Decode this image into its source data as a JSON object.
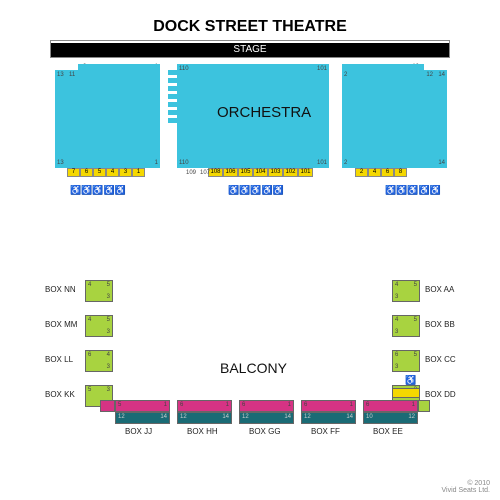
{
  "title": "DOCK STREET THEATRE",
  "stage_label": "STAGE",
  "orchestra_label": "ORCHESTRA",
  "balcony_label": "BALCONY",
  "colors": {
    "orchestra": "#3cc3de",
    "premium": "#f5d800",
    "box_green": "#a8d340",
    "pink": "#d63384",
    "teal": "#1a6b75",
    "stage_black": "#000000"
  },
  "orch_left": {
    "tl": "13",
    "tl2": "11",
    "tr": "9",
    "tr2": "1",
    "bl": "13",
    "br": "1"
  },
  "orch_center": {
    "tl": "110",
    "tr": "101",
    "bl": "110",
    "br": "101"
  },
  "orch_right": {
    "tl": "2",
    "tr": "10",
    "tr2": "12",
    "tr3": "14",
    "bl": "2",
    "br": "14"
  },
  "premium_left": [
    "7",
    "6",
    "5",
    "4",
    "3",
    "1"
  ],
  "premium_center": [
    "108",
    "106",
    "105",
    "104",
    "103",
    "102",
    "101"
  ],
  "premium_right": [
    "2",
    "4",
    "6",
    "8"
  ],
  "center_side_nums": [
    "109",
    "107"
  ],
  "boxes_left": [
    {
      "name": "BOX NN",
      "nums": [
        "4",
        "5",
        "3"
      ]
    },
    {
      "name": "BOX MM",
      "nums": [
        "4",
        "5",
        "3"
      ]
    },
    {
      "name": "BOX LL",
      "nums": [
        "6",
        "4",
        "3"
      ]
    },
    {
      "name": "BOX KK",
      "nums": [
        "5",
        "3"
      ]
    }
  ],
  "boxes_right": [
    {
      "name": "BOX AA",
      "nums": [
        "5",
        "4",
        "3"
      ]
    },
    {
      "name": "BOX BB",
      "nums": [
        "5",
        "4",
        "3"
      ]
    },
    {
      "name": "BOX CC",
      "nums": [
        "5",
        "6",
        "3"
      ]
    },
    {
      "name": "BOX DD",
      "nums": [
        "3"
      ]
    }
  ],
  "balcony_boxes": [
    {
      "name": "BOX JJ",
      "nums_top": [
        "5",
        "1"
      ],
      "nums_bot": [
        "12",
        "14"
      ]
    },
    {
      "name": "BOX HH",
      "nums_top": [
        "6",
        "1"
      ],
      "nums_bot": [
        "12",
        "14"
      ]
    },
    {
      "name": "BOX GG",
      "nums_top": [
        "6",
        "1"
      ],
      "nums_bot": [
        "12",
        "14"
      ]
    },
    {
      "name": "BOX FF",
      "nums_top": [
        "6",
        "1"
      ],
      "nums_bot": [
        "12",
        "14"
      ]
    },
    {
      "name": "BOX EE",
      "nums_top": [
        "6",
        "1"
      ],
      "nums_bot": [
        "10",
        "12"
      ]
    }
  ],
  "copyright": "© 2010\nVivid Seats Ltd."
}
